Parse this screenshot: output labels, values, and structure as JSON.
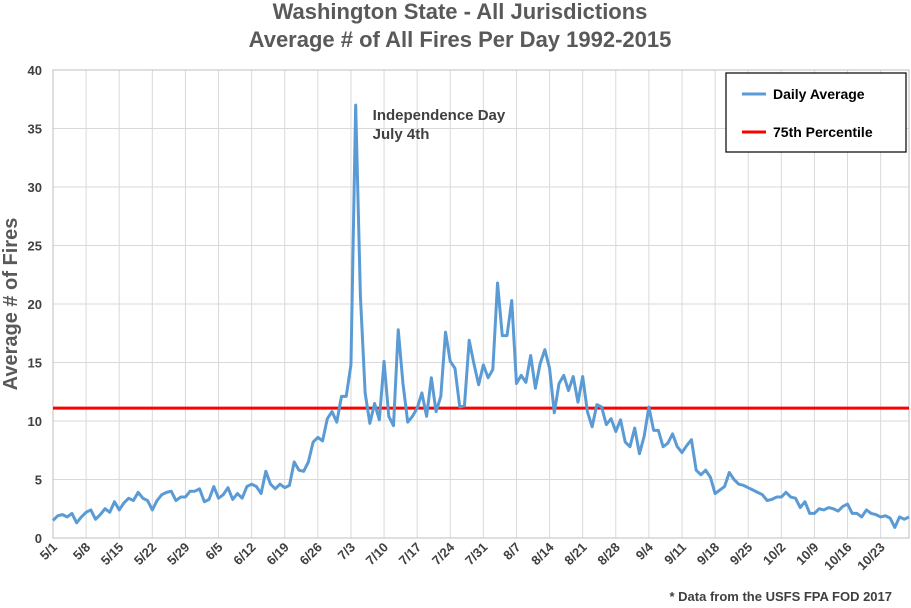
{
  "chart_data": {
    "type": "line",
    "title_lines": [
      "Washington State - All Jurisdictions",
      "Average # of All Fires Per Day 1992-2015"
    ],
    "ylabel": "Average # of Fires",
    "xlabel": "",
    "ylim": [
      0,
      40
    ],
    "yticks": [
      0,
      5,
      10,
      15,
      20,
      25,
      30,
      35,
      40
    ],
    "x_start_date": "5/1",
    "x_tick_labels": [
      "5/1",
      "5/8",
      "5/15",
      "5/22",
      "5/29",
      "6/5",
      "6/12",
      "6/19",
      "6/26",
      "7/3",
      "7/10",
      "7/17",
      "7/24",
      "7/31",
      "8/7",
      "8/14",
      "8/21",
      "8/28",
      "9/4",
      "9/11",
      "9/18",
      "9/25",
      "10/2",
      "10/9",
      "10/16",
      "10/23"
    ],
    "grid": true,
    "legend_position": "top-right",
    "series": [
      {
        "name": "Daily Average",
        "color": "#5b9bd5",
        "values": [
          1.5,
          1.9,
          2.0,
          1.8,
          2.1,
          1.3,
          1.8,
          2.2,
          2.4,
          1.6,
          2.0,
          2.5,
          2.2,
          3.1,
          2.4,
          3.0,
          3.4,
          3.2,
          3.9,
          3.4,
          3.2,
          2.4,
          3.2,
          3.7,
          3.9,
          4.0,
          3.2,
          3.5,
          3.5,
          4.0,
          4.0,
          4.2,
          3.1,
          3.3,
          4.4,
          3.4,
          3.7,
          4.3,
          3.3,
          3.8,
          3.4,
          4.4,
          4.6,
          4.4,
          3.8,
          5.7,
          4.6,
          4.2,
          4.6,
          4.3,
          4.5,
          6.5,
          5.8,
          5.7,
          6.5,
          8.2,
          8.6,
          8.3,
          10.2,
          10.8,
          9.9,
          12.1,
          12.1,
          14.8,
          37.0,
          20.7,
          12.4,
          9.8,
          11.5,
          10.1,
          15.1,
          10.4,
          9.6,
          17.8,
          13.2,
          9.9,
          10.4,
          11.1,
          12.4,
          10.4,
          13.7,
          10.8,
          12.1,
          17.6,
          15.1,
          14.5,
          11.2,
          11.3,
          16.9,
          14.9,
          13.1,
          14.8,
          13.7,
          14.4,
          21.8,
          17.3,
          17.3,
          20.3,
          13.2,
          13.9,
          13.3,
          15.6,
          12.8,
          14.9,
          16.1,
          14.5,
          10.7,
          13.2,
          13.9,
          12.6,
          13.8,
          11.6,
          13.8,
          10.8,
          9.5,
          11.4,
          11.2,
          9.7,
          10.2,
          9.1,
          10.1,
          8.2,
          7.8,
          9.4,
          7.2,
          8.7,
          11.2,
          9.2,
          9.2,
          7.8,
          8.1,
          8.9,
          7.8,
          7.3,
          7.9,
          8.4,
          5.8,
          5.4,
          5.8,
          5.2,
          3.8,
          4.1,
          4.4,
          5.6,
          5.0,
          4.6,
          4.5,
          4.3,
          4.1,
          3.9,
          3.7,
          3.2,
          3.3,
          3.5,
          3.5,
          3.9,
          3.5,
          3.4,
          2.6,
          3.1,
          2.1,
          2.1,
          2.5,
          2.4,
          2.6,
          2.5,
          2.3,
          2.7,
          2.9,
          2.1,
          2.1,
          1.8,
          2.4,
          2.1,
          2.0,
          1.8,
          1.9,
          1.7,
          0.9,
          1.8,
          1.6,
          1.8
        ]
      },
      {
        "name": "75th Percentile",
        "color": "#ff0000",
        "constant": 11.1
      }
    ],
    "annotations": [
      {
        "lines": [
          "Independence Day",
          "July 4th"
        ],
        "x_date": "7/4",
        "y": 37.0
      }
    ],
    "source_note": "* Data from the USFS FPA FOD 2017"
  }
}
